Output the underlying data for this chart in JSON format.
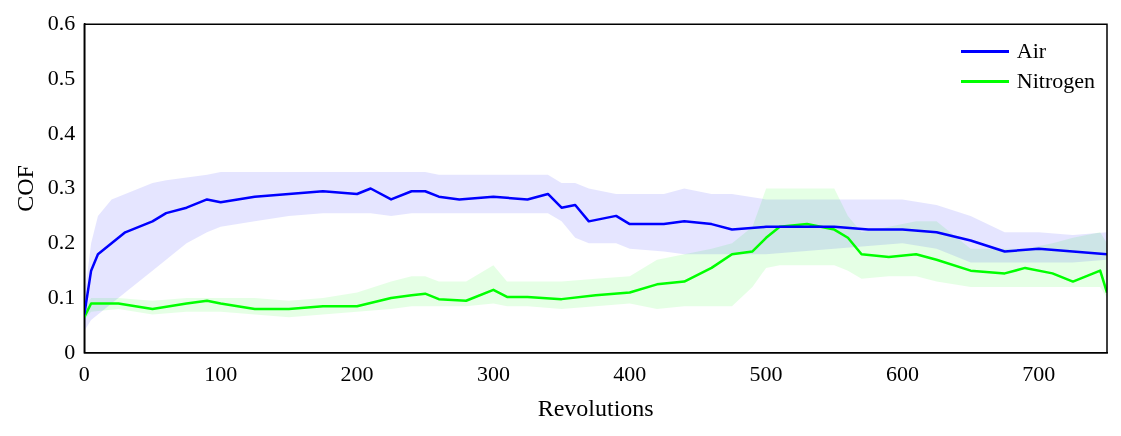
{
  "chart_data": {
    "type": "line",
    "xlabel": "Revolutions",
    "ylabel": "COF",
    "xlim": [
      0,
      750
    ],
    "xticks": [
      0,
      100,
      200,
      300,
      400,
      500,
      600,
      700
    ],
    "ylim": [
      0,
      0.6
    ],
    "yticks": [
      0,
      0.1,
      0.2,
      0.3,
      0.4,
      0.5,
      0.6
    ],
    "legend": "top right",
    "grid": false,
    "marker": "none",
    "line_style": "solid",
    "series": [
      {
        "name": "Air",
        "color": "#0000ff",
        "x": [
          0,
          5,
          10,
          20,
          30,
          50,
          60,
          75,
          90,
          100,
          125,
          150,
          175,
          200,
          210,
          225,
          240,
          250,
          260,
          275,
          300,
          325,
          340,
          350,
          360,
          370,
          390,
          400,
          425,
          440,
          460,
          475,
          500,
          525,
          550,
          575,
          600,
          625,
          650,
          675,
          700,
          725,
          750
        ],
        "values": [
          0.07,
          0.15,
          0.18,
          0.2,
          0.22,
          0.24,
          0.255,
          0.265,
          0.28,
          0.275,
          0.285,
          0.29,
          0.295,
          0.29,
          0.3,
          0.28,
          0.295,
          0.295,
          0.285,
          0.28,
          0.285,
          0.28,
          0.29,
          0.265,
          0.27,
          0.24,
          0.25,
          0.235,
          0.235,
          0.24,
          0.235,
          0.225,
          0.23,
          0.23,
          0.23,
          0.225,
          0.225,
          0.22,
          0.205,
          0.185,
          0.19,
          0.185,
          0.18
        ],
        "lower": [
          0.04,
          0.06,
          0.07,
          0.09,
          0.11,
          0.15,
          0.17,
          0.2,
          0.22,
          0.23,
          0.24,
          0.25,
          0.255,
          0.255,
          0.255,
          0.25,
          0.255,
          0.255,
          0.255,
          0.255,
          0.255,
          0.255,
          0.255,
          0.24,
          0.21,
          0.2,
          0.2,
          0.19,
          0.185,
          0.18,
          0.18,
          0.18,
          0.18,
          0.185,
          0.19,
          0.195,
          0.2,
          0.19,
          0.165,
          0.165,
          0.165,
          0.165,
          0.17
        ],
        "upper": [
          0.1,
          0.2,
          0.25,
          0.28,
          0.29,
          0.31,
          0.315,
          0.32,
          0.325,
          0.33,
          0.33,
          0.33,
          0.33,
          0.33,
          0.33,
          0.33,
          0.33,
          0.33,
          0.325,
          0.325,
          0.325,
          0.325,
          0.325,
          0.31,
          0.31,
          0.3,
          0.29,
          0.29,
          0.29,
          0.3,
          0.29,
          0.29,
          0.28,
          0.28,
          0.28,
          0.28,
          0.28,
          0.27,
          0.25,
          0.22,
          0.22,
          0.215,
          0.22
        ]
      },
      {
        "name": "Nitrogen",
        "color": "#00ff00",
        "x": [
          0,
          5,
          25,
          50,
          75,
          90,
          100,
          125,
          150,
          175,
          200,
          225,
          240,
          250,
          260,
          280,
          300,
          310,
          325,
          350,
          375,
          400,
          420,
          440,
          460,
          475,
          490,
          500,
          510,
          530,
          550,
          560,
          570,
          590,
          610,
          625,
          650,
          675,
          690,
          710,
          725,
          745,
          750
        ],
        "values": [
          0.065,
          0.09,
          0.09,
          0.08,
          0.09,
          0.095,
          0.09,
          0.08,
          0.08,
          0.085,
          0.085,
          0.1,
          0.105,
          0.108,
          0.098,
          0.095,
          0.115,
          0.102,
          0.102,
          0.098,
          0.105,
          0.11,
          0.125,
          0.13,
          0.155,
          0.18,
          0.185,
          0.21,
          0.23,
          0.235,
          0.225,
          0.21,
          0.18,
          0.175,
          0.18,
          0.17,
          0.15,
          0.145,
          0.155,
          0.145,
          0.13,
          0.15,
          0.11
        ],
        "lower": [
          0.06,
          0.075,
          0.08,
          0.07,
          0.075,
          0.075,
          0.075,
          0.07,
          0.065,
          0.07,
          0.075,
          0.08,
          0.085,
          0.085,
          0.085,
          0.085,
          0.09,
          0.085,
          0.085,
          0.08,
          0.085,
          0.09,
          0.08,
          0.085,
          0.085,
          0.085,
          0.12,
          0.155,
          0.16,
          0.16,
          0.16,
          0.15,
          0.135,
          0.14,
          0.14,
          0.13,
          0.12,
          0.12,
          0.12,
          0.12,
          0.12,
          0.12,
          0.1
        ],
        "upper": [
          0.08,
          0.1,
          0.1,
          0.095,
          0.1,
          0.1,
          0.1,
          0.1,
          0.095,
          0.1,
          0.11,
          0.13,
          0.14,
          0.14,
          0.13,
          0.13,
          0.16,
          0.13,
          0.13,
          0.13,
          0.135,
          0.14,
          0.17,
          0.18,
          0.19,
          0.2,
          0.23,
          0.3,
          0.3,
          0.3,
          0.3,
          0.25,
          0.22,
          0.23,
          0.24,
          0.24,
          0.19,
          0.19,
          0.19,
          0.2,
          0.21,
          0.22,
          0.2
        ]
      }
    ]
  }
}
